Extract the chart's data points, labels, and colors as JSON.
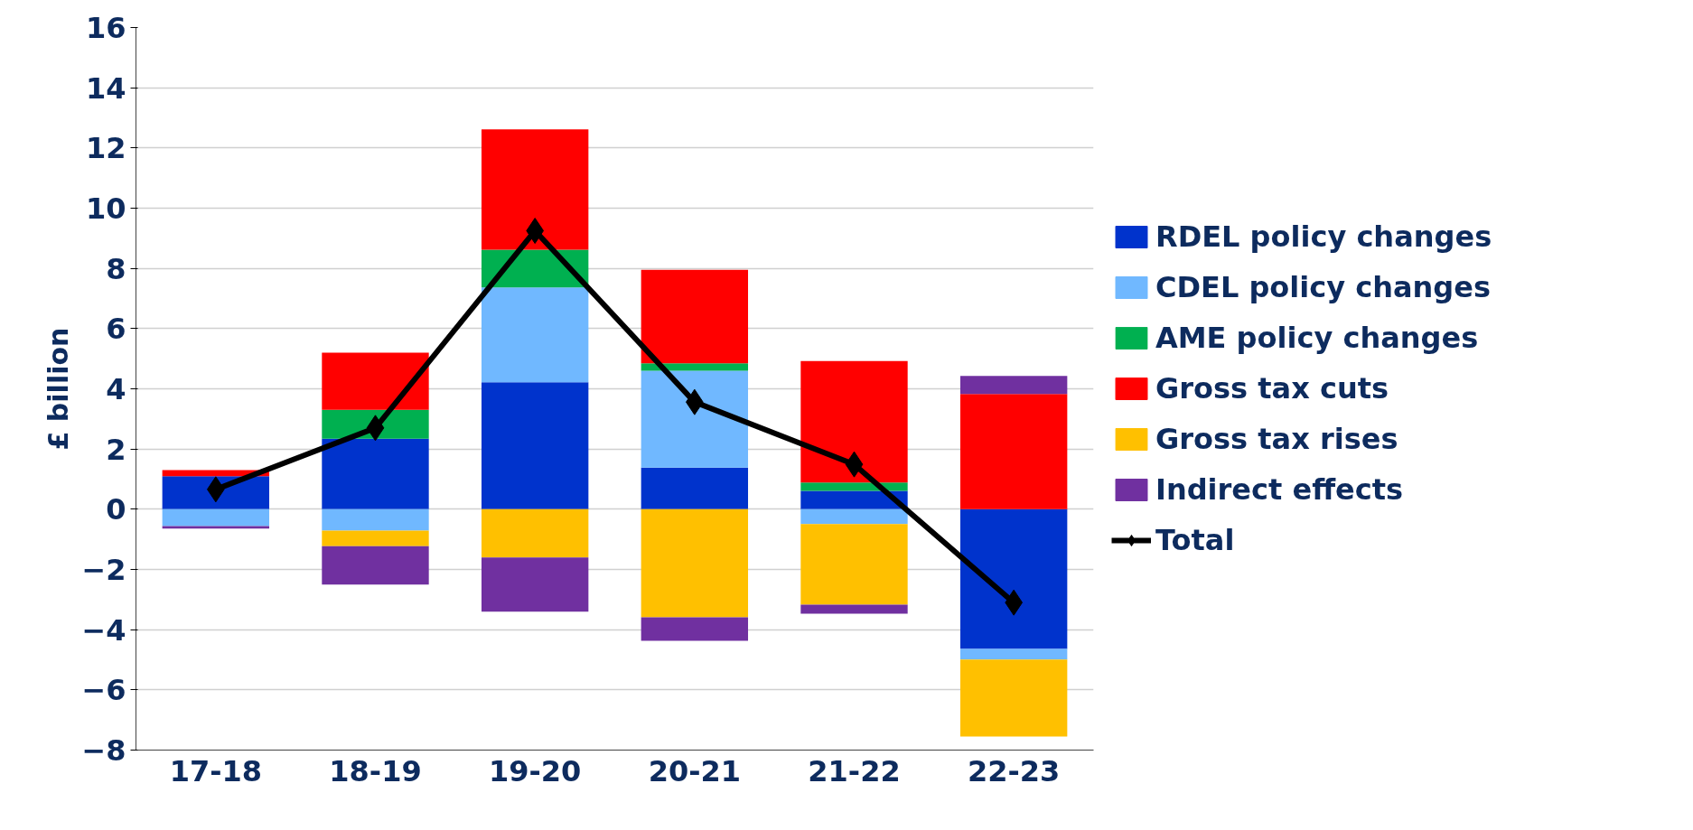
{
  "chart_data": {
    "type": "bar",
    "stacked": true,
    "ylabel": "£ billion",
    "categories": [
      "17-18",
      "18-19",
      "19-20",
      "20-21",
      "21-22",
      "22-23"
    ],
    "series": [
      {
        "name": "RDEL policy changes",
        "color": "#0033cc",
        "values": [
          1.1,
          2.34,
          4.22,
          1.38,
          0.61,
          -4.64
        ]
      },
      {
        "name": "CDEL policy changes",
        "color": "#70b8ff",
        "values": [
          -0.56,
          -0.71,
          3.15,
          3.22,
          -0.49,
          -0.35
        ]
      },
      {
        "name": "AME policy changes",
        "color": "#00b050",
        "values": [
          null,
          0.96,
          1.25,
          0.25,
          0.28,
          null
        ]
      },
      {
        "name": "Gross tax cuts",
        "color": "#ff0000",
        "values": [
          0.2,
          1.9,
          4.0,
          3.1,
          4.03,
          3.83
        ]
      },
      {
        "name": "Gross tax rises",
        "color": "#ffc000",
        "values": [
          null,
          -0.52,
          -1.6,
          -3.59,
          -2.68,
          -2.56
        ]
      },
      {
        "name": "Indirect effects",
        "color": "#7030a0",
        "values": [
          -0.08,
          -1.27,
          -1.8,
          -0.78,
          -0.3,
          0.6
        ]
      },
      {
        "name": "Total",
        "type": "line",
        "color": "#000000",
        "marker": "diamond",
        "values": [
          0.66,
          2.7,
          9.25,
          3.56,
          1.49,
          -3.1
        ]
      }
    ],
    "ylim": [
      -8,
      16
    ],
    "yticks": [
      -8,
      -6,
      -4,
      -2,
      0,
      2,
      4,
      6,
      8,
      10,
      12,
      14,
      16
    ],
    "grid": "y",
    "legend": "right"
  }
}
